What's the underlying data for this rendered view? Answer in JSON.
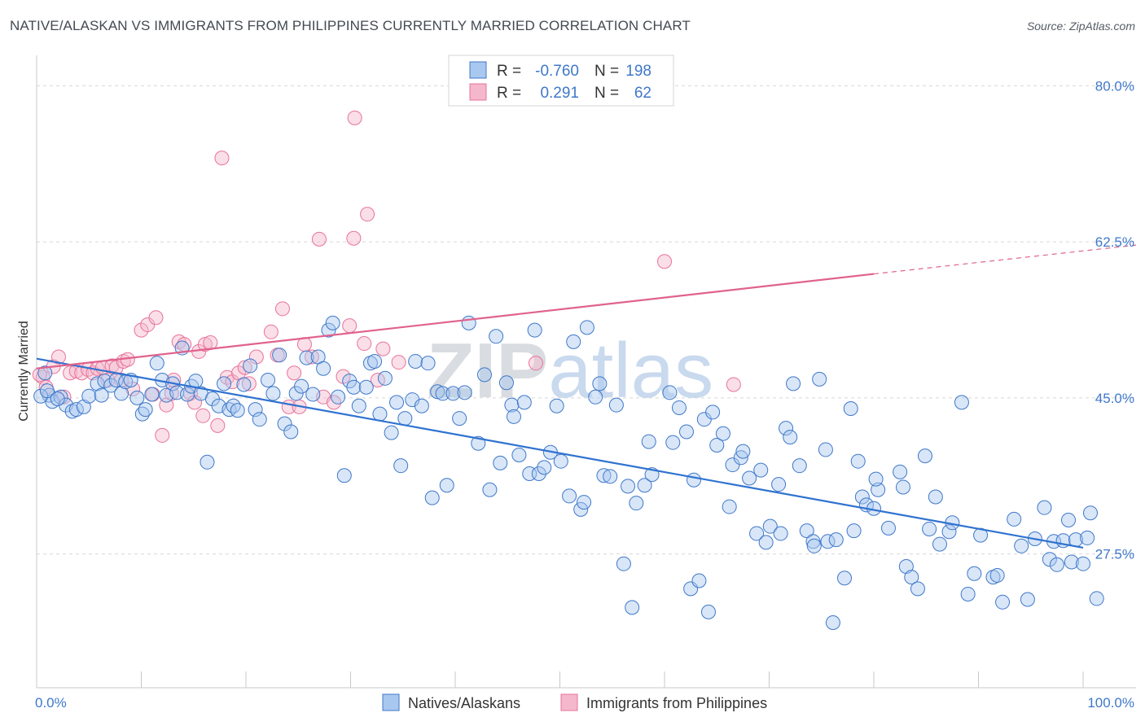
{
  "title": "NATIVE/ALASKAN VS IMMIGRANTS FROM PHILIPPINES CURRENTLY MARRIED CORRELATION CHART",
  "source": "Source: ZipAtlas.com",
  "watermark": "ZIPatlas",
  "colors": {
    "blue": "#3f78c9",
    "blue_fill": "#a9c8ef",
    "blue_line": "#2f72d0",
    "pink": "#e8739a",
    "pink_fill": "#f5b7cb",
    "pink_line": "#e0628d",
    "grid": "#d8d8d8"
  },
  "legend": {
    "rows": [
      {
        "r_label": "R =",
        "r_value": "-0.760",
        "n_label": "N =",
        "n_value": "198",
        "color": "blue"
      },
      {
        "r_label": "R =",
        "r_value": "0.291",
        "n_label": "N =",
        "n_value": "62",
        "color": "pink"
      }
    ]
  },
  "chart_data": {
    "type": "scatter",
    "xlabel": "",
    "ylabel": "Currently Married",
    "xlim": [
      0,
      100
    ],
    "ylim": [
      12.5,
      82.5
    ],
    "x_tick_labels": [
      "0.0%",
      "100.0%"
    ],
    "y_ticks": [
      27.5,
      45.0,
      62.5,
      80.0
    ],
    "y_tick_labels": [
      "27.5%",
      "45.0%",
      "62.5%",
      "80.0%"
    ],
    "grid": true,
    "legend_position": "bottom",
    "series": [
      {
        "name": "Natives/Alaskans",
        "color": "blue",
        "trend": {
          "x": [
            0,
            100
          ],
          "y": [
            49.4,
            28.2
          ],
          "dashed_from": null
        },
        "points": [
          [
            0.8,
            47.8
          ],
          [
            1.2,
            45.3
          ],
          [
            1.5,
            44.6
          ],
          [
            2.3,
            45.1
          ],
          [
            2.8,
            44.2
          ],
          [
            3.4,
            43.5
          ],
          [
            3.8,
            43.7
          ],
          [
            4.5,
            44.0
          ],
          [
            5.0,
            45.2
          ],
          [
            5.8,
            46.6
          ],
          [
            6.2,
            45.3
          ],
          [
            6.5,
            46.9
          ],
          [
            7.1,
            46.4
          ],
          [
            7.6,
            47.0
          ],
          [
            8.1,
            45.5
          ],
          [
            8.5,
            46.8
          ],
          [
            9.0,
            47.0
          ],
          [
            9.6,
            45.0
          ],
          [
            10.1,
            43.2
          ],
          [
            10.4,
            43.7
          ],
          [
            11.0,
            45.4
          ],
          [
            11.5,
            48.9
          ],
          [
            12.0,
            47.0
          ],
          [
            12.4,
            45.3
          ],
          [
            13.0,
            46.6
          ],
          [
            13.4,
            45.6
          ],
          [
            13.9,
            50.6
          ],
          [
            14.4,
            45.4
          ],
          [
            14.8,
            46.3
          ],
          [
            15.2,
            46.9
          ],
          [
            15.7,
            45.5
          ],
          [
            16.3,
            37.8
          ],
          [
            16.8,
            44.9
          ],
          [
            17.4,
            44.1
          ],
          [
            17.9,
            46.6
          ],
          [
            18.4,
            43.7
          ],
          [
            18.8,
            44.1
          ],
          [
            19.2,
            43.6
          ],
          [
            19.8,
            46.5
          ],
          [
            20.4,
            48.6
          ],
          [
            20.9,
            43.7
          ],
          [
            21.3,
            42.6
          ],
          [
            22.1,
            47.0
          ],
          [
            22.6,
            45.5
          ],
          [
            23.2,
            49.8
          ],
          [
            23.7,
            42.1
          ],
          [
            24.3,
            41.2
          ],
          [
            24.8,
            45.5
          ],
          [
            25.3,
            46.3
          ],
          [
            25.8,
            49.5
          ],
          [
            26.4,
            45.4
          ],
          [
            26.9,
            49.6
          ],
          [
            27.4,
            48.3
          ],
          [
            27.9,
            52.6
          ],
          [
            28.3,
            53.4
          ],
          [
            28.8,
            45.1
          ],
          [
            29.4,
            36.3
          ],
          [
            29.9,
            46.9
          ],
          [
            30.3,
            46.2
          ],
          [
            30.8,
            44.1
          ],
          [
            31.5,
            46.2
          ],
          [
            31.9,
            48.9
          ],
          [
            32.3,
            49.1
          ],
          [
            32.8,
            43.2
          ],
          [
            33.3,
            47.2
          ],
          [
            33.9,
            41.1
          ],
          [
            34.4,
            44.5
          ],
          [
            34.8,
            37.4
          ],
          [
            35.2,
            42.7
          ],
          [
            35.9,
            44.8
          ],
          [
            36.2,
            49.1
          ],
          [
            36.8,
            44.1
          ],
          [
            37.4,
            48.9
          ],
          [
            37.8,
            33.8
          ],
          [
            38.3,
            45.7
          ],
          [
            38.8,
            45.5
          ],
          [
            39.2,
            35.2
          ],
          [
            39.8,
            45.5
          ],
          [
            40.4,
            42.7
          ],
          [
            40.9,
            45.6
          ],
          [
            41.3,
            53.4
          ],
          [
            42.2,
            39.9
          ],
          [
            42.8,
            47.6
          ],
          [
            43.3,
            34.7
          ],
          [
            43.9,
            51.9
          ],
          [
            44.3,
            37.7
          ],
          [
            44.9,
            46.7
          ],
          [
            45.4,
            44.2
          ],
          [
            45.6,
            42.9
          ],
          [
            46.1,
            38.6
          ],
          [
            46.6,
            44.5
          ],
          [
            47.1,
            36.5
          ],
          [
            47.6,
            52.6
          ],
          [
            48.0,
            36.5
          ],
          [
            48.5,
            37.2
          ],
          [
            49.1,
            38.9
          ],
          [
            49.7,
            44.1
          ],
          [
            50.1,
            37.9
          ],
          [
            50.9,
            34.0
          ],
          [
            51.3,
            51.3
          ],
          [
            52.0,
            32.5
          ],
          [
            52.3,
            33.3
          ],
          [
            52.6,
            52.9
          ],
          [
            53.4,
            45.1
          ],
          [
            53.8,
            46.6
          ],
          [
            54.2,
            36.3
          ],
          [
            54.8,
            36.2
          ],
          [
            55.4,
            44.2
          ],
          [
            56.1,
            26.4
          ],
          [
            56.5,
            35.1
          ],
          [
            56.9,
            21.5
          ],
          [
            57.3,
            33.2
          ],
          [
            58.1,
            35.2
          ],
          [
            58.5,
            40.1
          ],
          [
            58.8,
            36.4
          ],
          [
            60.5,
            45.6
          ],
          [
            60.8,
            40.0
          ],
          [
            61.4,
            43.9
          ],
          [
            62.1,
            41.2
          ],
          [
            62.5,
            23.6
          ],
          [
            62.8,
            35.8
          ],
          [
            63.3,
            24.5
          ],
          [
            63.8,
            42.6
          ],
          [
            64.2,
            21.0
          ],
          [
            64.6,
            43.4
          ],
          [
            65.0,
            39.7
          ],
          [
            65.6,
            41.0
          ],
          [
            66.2,
            32.8
          ],
          [
            66.5,
            37.5
          ],
          [
            67.3,
            38.3
          ],
          [
            67.5,
            39.0
          ],
          [
            68.1,
            36.0
          ],
          [
            68.8,
            29.8
          ],
          [
            69.2,
            36.9
          ],
          [
            69.7,
            28.8
          ],
          [
            70.1,
            30.6
          ],
          [
            70.9,
            35.3
          ],
          [
            71.1,
            29.8
          ],
          [
            71.6,
            41.6
          ],
          [
            72.3,
            46.6
          ],
          [
            72.0,
            40.6
          ],
          [
            72.9,
            37.4
          ],
          [
            73.6,
            30.1
          ],
          [
            74.2,
            28.9
          ],
          [
            74.8,
            47.1
          ],
          [
            74.3,
            28.4
          ],
          [
            75.4,
            39.2
          ],
          [
            75.6,
            28.9
          ],
          [
            76.1,
            19.8
          ],
          [
            76.4,
            29.1
          ],
          [
            77.2,
            24.8
          ],
          [
            77.8,
            43.8
          ],
          [
            78.1,
            30.1
          ],
          [
            78.5,
            37.9
          ],
          [
            78.9,
            33.9
          ],
          [
            79.3,
            33.0
          ],
          [
            80.0,
            32.6
          ],
          [
            80.4,
            34.7
          ],
          [
            80.2,
            35.9
          ],
          [
            81.4,
            30.4
          ],
          [
            82.5,
            36.7
          ],
          [
            82.8,
            35.0
          ],
          [
            83.1,
            26.1
          ],
          [
            83.6,
            24.9
          ],
          [
            84.2,
            23.6
          ],
          [
            84.9,
            38.5
          ],
          [
            85.3,
            30.3
          ],
          [
            85.9,
            33.9
          ],
          [
            86.3,
            28.6
          ],
          [
            87.2,
            30.0
          ],
          [
            87.5,
            31.0
          ],
          [
            88.4,
            44.5
          ],
          [
            89.0,
            23.0
          ],
          [
            90.2,
            29.6
          ],
          [
            89.6,
            25.3
          ],
          [
            91.4,
            24.9
          ],
          [
            91.8,
            25.1
          ],
          [
            92.3,
            22.1
          ],
          [
            93.4,
            31.4
          ],
          [
            94.1,
            28.4
          ],
          [
            94.7,
            22.4
          ],
          [
            95.4,
            29.2
          ],
          [
            96.3,
            32.7
          ],
          [
            96.8,
            26.9
          ],
          [
            97.5,
            26.3
          ],
          [
            97.2,
            28.9
          ],
          [
            98.1,
            29.0
          ],
          [
            98.6,
            31.3
          ],
          [
            98.9,
            26.6
          ],
          [
            99.3,
            29.1
          ],
          [
            100.0,
            26.4
          ],
          [
            100.4,
            29.3
          ],
          [
            100.7,
            32.1
          ],
          [
            101.3,
            22.5
          ],
          [
            0.4,
            45.2
          ],
          [
            1.0,
            45.8
          ],
          [
            2.0,
            44.9
          ]
        ]
      },
      {
        "name": "Immigrants from Philippines",
        "color": "pink",
        "trend": {
          "x": [
            0,
            80
          ],
          "y": [
            48.3,
            58.9
          ],
          "dashed_from": 80,
          "dashed_to": [
            100,
            61.5
          ]
        },
        "points": [
          [
            0.6,
            47.3
          ],
          [
            0.9,
            46.2
          ],
          [
            1.6,
            48.5
          ],
          [
            2.1,
            49.6
          ],
          [
            2.6,
            45.1
          ],
          [
            3.2,
            47.8
          ],
          [
            3.8,
            48.0
          ],
          [
            4.3,
            47.8
          ],
          [
            4.9,
            48.2
          ],
          [
            5.4,
            47.8
          ],
          [
            5.8,
            48.3
          ],
          [
            6.3,
            48.4
          ],
          [
            6.8,
            47.0
          ],
          [
            7.2,
            48.6
          ],
          [
            7.6,
            48.4
          ],
          [
            8.1,
            47.0
          ],
          [
            8.3,
            49.1
          ],
          [
            8.7,
            49.3
          ],
          [
            9.2,
            46.0
          ],
          [
            10.0,
            52.6
          ],
          [
            10.6,
            53.2
          ],
          [
            11.1,
            45.4
          ],
          [
            11.4,
            54.0
          ],
          [
            12.0,
            40.8
          ],
          [
            12.4,
            44.2
          ],
          [
            12.9,
            45.5
          ],
          [
            13.1,
            47.0
          ],
          [
            13.6,
            51.3
          ],
          [
            14.1,
            51.0
          ],
          [
            14.7,
            45.5
          ],
          [
            15.1,
            44.5
          ],
          [
            15.5,
            50.2
          ],
          [
            15.9,
            43.0
          ],
          [
            16.1,
            51.0
          ],
          [
            16.6,
            51.2
          ],
          [
            17.3,
            41.9
          ],
          [
            17.7,
            71.9
          ],
          [
            18.2,
            47.3
          ],
          [
            18.7,
            46.8
          ],
          [
            19.3,
            47.8
          ],
          [
            19.9,
            48.4
          ],
          [
            20.3,
            46.6
          ],
          [
            21.0,
            49.6
          ],
          [
            22.4,
            52.4
          ],
          [
            23.0,
            49.8
          ],
          [
            23.5,
            55.0
          ],
          [
            24.1,
            44.0
          ],
          [
            24.6,
            47.8
          ],
          [
            25.1,
            44.0
          ],
          [
            25.6,
            51.0
          ],
          [
            26.3,
            49.6
          ],
          [
            27.0,
            62.8
          ],
          [
            27.4,
            45.1
          ],
          [
            28.4,
            44.5
          ],
          [
            29.3,
            47.4
          ],
          [
            29.9,
            53.1
          ],
          [
            30.3,
            62.9
          ],
          [
            30.4,
            76.4
          ],
          [
            31.3,
            51.1
          ],
          [
            31.6,
            65.6
          ],
          [
            32.6,
            47.0
          ],
          [
            33.1,
            50.5
          ],
          [
            34.6,
            49.0
          ],
          [
            47.7,
            48.9
          ],
          [
            60.0,
            60.3
          ],
          [
            66.6,
            46.5
          ],
          [
            0.3,
            47.6
          ]
        ]
      }
    ]
  }
}
